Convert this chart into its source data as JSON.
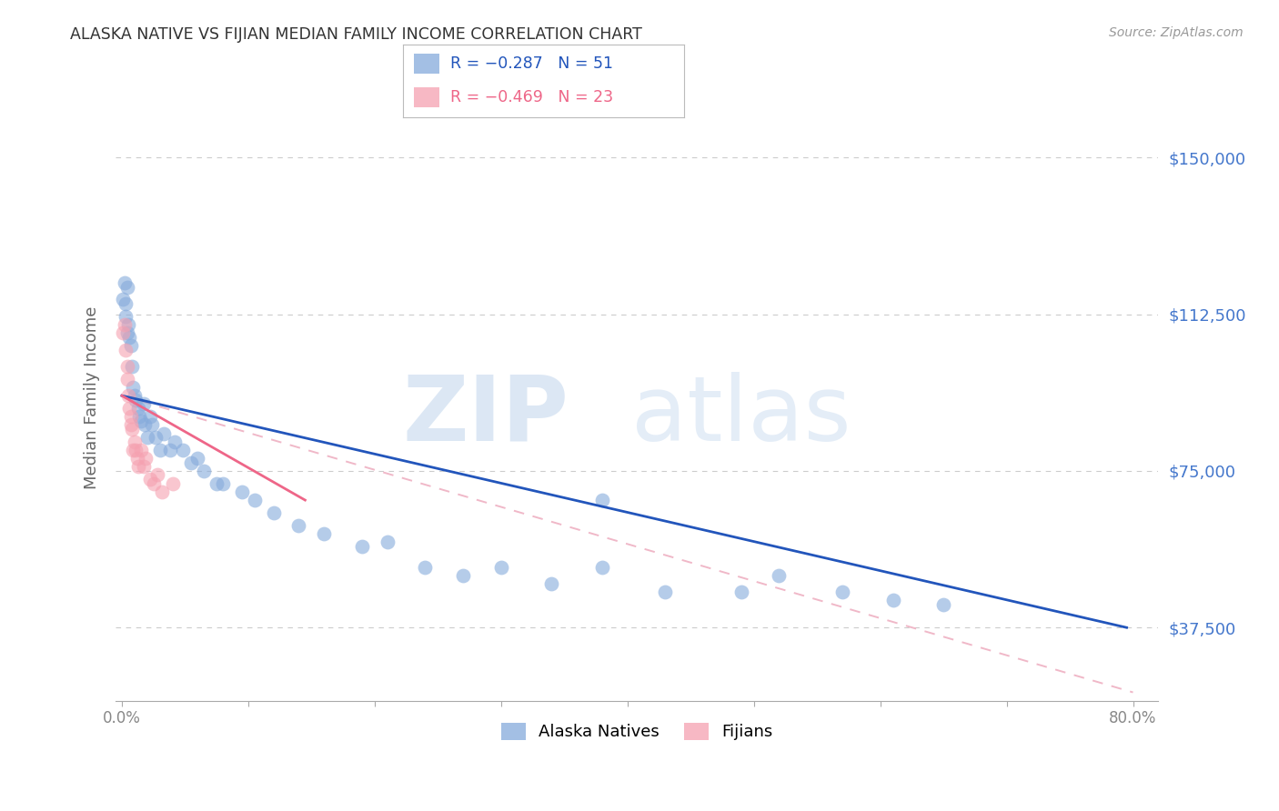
{
  "title": "ALASKA NATIVE VS FIJIAN MEDIAN FAMILY INCOME CORRELATION CHART",
  "source": "Source: ZipAtlas.com",
  "ylabel": "Median Family Income",
  "xlim": [
    -0.005,
    0.82
  ],
  "ylim": [
    20000,
    165000
  ],
  "yticks": [
    37500,
    75000,
    112500,
    150000
  ],
  "ytick_labels": [
    "$37,500",
    "$75,000",
    "$112,500",
    "$150,000"
  ],
  "xticks": [
    0.0,
    0.1,
    0.2,
    0.3,
    0.4,
    0.5,
    0.6,
    0.7,
    0.8
  ],
  "xtick_labels": [
    "0.0%",
    "",
    "",
    "",
    "",
    "",
    "",
    "",
    "80.0%"
  ],
  "legend_blue_label": "Alaska Natives",
  "legend_pink_label": "Fijians",
  "legend_blue_r": "R = −0.287",
  "legend_blue_n": "N = 51",
  "legend_pink_r": "R = −0.469",
  "legend_pink_n": "N = 23",
  "blue_color": "#85AADB",
  "pink_color": "#F5A0B0",
  "trend_blue_color": "#2255BB",
  "trend_pink_color": "#EE6688",
  "trend_pink_dashed_color": "#F0B8C8",
  "title_color": "#333333",
  "axis_label_color": "#666666",
  "ytick_color": "#4477CC",
  "xtick_color": "#888888",
  "grid_color": "#CCCCCC",
  "background_color": "#FFFFFF",
  "alaska_x": [
    0.001,
    0.002,
    0.003,
    0.003,
    0.004,
    0.004,
    0.005,
    0.006,
    0.007,
    0.008,
    0.009,
    0.01,
    0.011,
    0.013,
    0.014,
    0.015,
    0.017,
    0.018,
    0.02,
    0.022,
    0.024,
    0.027,
    0.03,
    0.033,
    0.038,
    0.042,
    0.048,
    0.055,
    0.06,
    0.065,
    0.075,
    0.08,
    0.095,
    0.105,
    0.12,
    0.14,
    0.16,
    0.19,
    0.21,
    0.24,
    0.27,
    0.3,
    0.34,
    0.38,
    0.43,
    0.49,
    0.52,
    0.57,
    0.61,
    0.65,
    0.38
  ],
  "alaska_y": [
    116000,
    120000,
    115000,
    112000,
    119000,
    108000,
    110000,
    107000,
    105000,
    100000,
    95000,
    93000,
    92000,
    90000,
    88000,
    87000,
    91000,
    86000,
    83000,
    88000,
    86000,
    83000,
    80000,
    84000,
    80000,
    82000,
    80000,
    77000,
    78000,
    75000,
    72000,
    72000,
    70000,
    68000,
    65000,
    62000,
    60000,
    57000,
    58000,
    52000,
    50000,
    52000,
    48000,
    52000,
    46000,
    46000,
    50000,
    46000,
    44000,
    43000,
    68000
  ],
  "fijian_x": [
    0.001,
    0.002,
    0.003,
    0.004,
    0.004,
    0.005,
    0.006,
    0.007,
    0.007,
    0.008,
    0.009,
    0.01,
    0.011,
    0.012,
    0.013,
    0.015,
    0.017,
    0.019,
    0.022,
    0.025,
    0.028,
    0.032,
    0.04
  ],
  "fijian_y": [
    108000,
    110000,
    104000,
    100000,
    97000,
    93000,
    90000,
    88000,
    86000,
    85000,
    80000,
    82000,
    80000,
    78000,
    76000,
    80000,
    76000,
    78000,
    73000,
    72000,
    74000,
    70000,
    72000
  ],
  "blue_trend_x": [
    0.0,
    0.795
  ],
  "blue_trend_y": [
    93000,
    37500
  ],
  "pink_trend_x": [
    0.0,
    0.145
  ],
  "pink_trend_y": [
    93000,
    68000
  ],
  "pink_dashed_trend_x": [
    0.0,
    0.8
  ],
  "pink_dashed_trend_y": [
    93000,
    22000
  ]
}
